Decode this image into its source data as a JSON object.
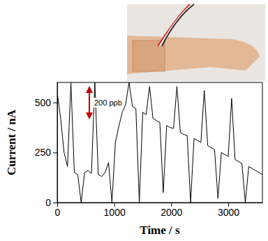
{
  "chart_data": {
    "type": "line",
    "x_label": "Time / s",
    "y_label": "Current / nA",
    "annotation": "200 ppb",
    "color": "#000000",
    "x": [
      0,
      60,
      120,
      180,
      240,
      300,
      360,
      420,
      480,
      540,
      600,
      660,
      720,
      780,
      840,
      900,
      960,
      1020,
      1080,
      1140,
      1200,
      1260,
      1320,
      1380,
      1440,
      1500,
      1560,
      1620,
      1680,
      1740,
      1800,
      1860,
      1920,
      1980,
      2040,
      2100,
      2160,
      2220,
      2280,
      2340,
      2400,
      2460,
      2520,
      2580,
      2640,
      2700,
      2760,
      2820,
      2880,
      2940,
      3000,
      3060,
      3120,
      3180,
      3240,
      3300,
      3360,
      3420,
      3480,
      3540,
      3600
    ],
    "values": [
      550,
      420,
      250,
      180,
      600,
      150,
      140,
      0,
      150,
      160,
      145,
      600,
      140,
      130,
      150,
      200,
      0,
      300,
      380,
      450,
      490,
      600,
      480,
      470,
      0,
      450,
      440,
      580,
      420,
      410,
      400,
      50,
      385,
      375,
      370,
      580,
      350,
      340,
      335,
      0,
      320,
      310,
      300,
      560,
      285,
      275,
      265,
      20,
      250,
      240,
      230,
      520,
      215,
      205,
      195,
      0,
      180,
      170,
      160,
      150,
      140
    ],
    "xlim": [
      0,
      3600
    ],
    "ylim": [
      0,
      600
    ],
    "xticks": [
      0,
      1000,
      2000,
      3000
    ],
    "yticks": [
      0,
      250,
      500
    ]
  }
}
